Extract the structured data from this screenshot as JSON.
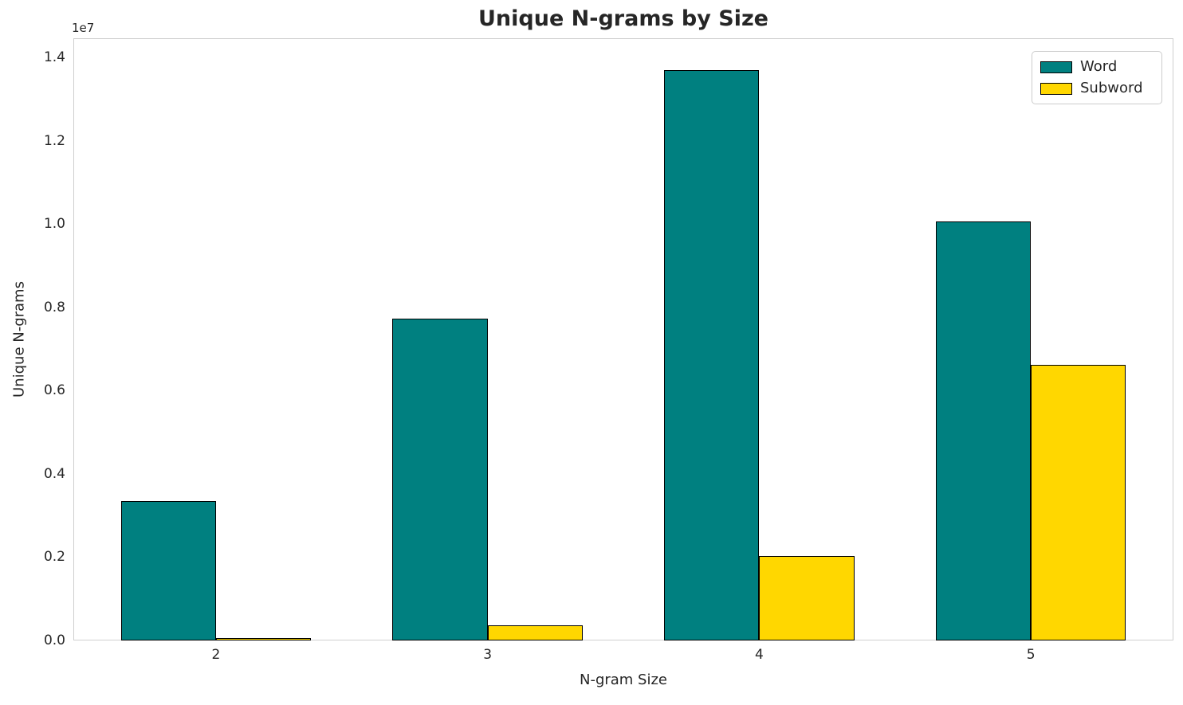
{
  "title": "Unique N-grams by Size",
  "axes": {
    "xlabel": "N-gram Size",
    "ylabel": "Unique N-grams",
    "y_offset_text": "1e7",
    "x_tick_labels": [
      "2",
      "3",
      "4",
      "5"
    ],
    "y_tick_labels": [
      "0.0",
      "0.2",
      "0.4",
      "0.6",
      "0.8",
      "1.0",
      "1.2",
      "1.4"
    ]
  },
  "chart_data": {
    "type": "bar",
    "title": "Unique N-grams by Size",
    "xlabel": "N-gram Size",
    "ylabel": "Unique N-grams",
    "categories": [
      "2",
      "3",
      "4",
      "5"
    ],
    "series": [
      {
        "name": "Word",
        "color": "#008080",
        "values": [
          3340000,
          7720000,
          13700000,
          10070000
        ]
      },
      {
        "name": "Subword",
        "color": "#FFD700",
        "values": [
          40000,
          355000,
          2020000,
          6620000
        ]
      }
    ],
    "ylim": [
      0,
      14460000
    ],
    "y_ticks": [
      0,
      2000000,
      4000000,
      6000000,
      8000000,
      10000000,
      12000000,
      14000000
    ],
    "y_scale_offset": "1e7",
    "grid": true,
    "legend_position": "upper right",
    "bar_edge_color": "#000000",
    "bar_width_fraction": 0.35
  },
  "palette": {
    "word": "#008080",
    "subword": "#FFD700",
    "grid_line": "#e7e7e7",
    "plot_frame": "#cfcfcf",
    "text": "#262626",
    "background": "#ffffff"
  }
}
